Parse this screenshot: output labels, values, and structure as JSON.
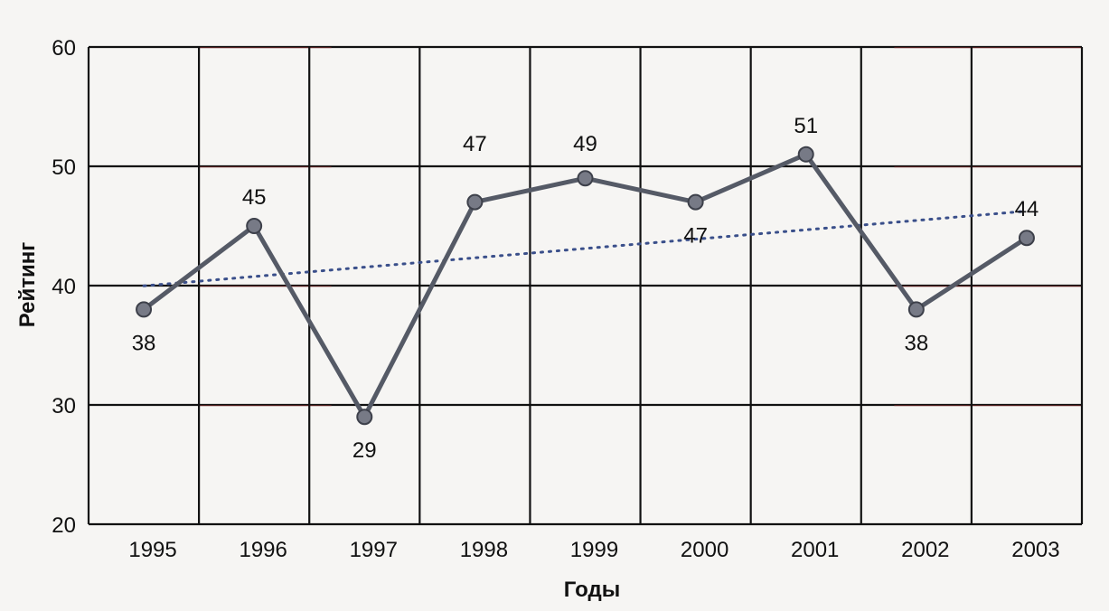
{
  "chart_data": {
    "type": "line",
    "categories": [
      "1995",
      "1996",
      "1997",
      "1998",
      "1999",
      "2000",
      "2001",
      "2002",
      "2003"
    ],
    "values": [
      38,
      45,
      29,
      47,
      49,
      47,
      51,
      38,
      44
    ],
    "data_labels": [
      "38",
      "45",
      "29",
      "47",
      "49",
      "47",
      "51",
      "38",
      "44"
    ],
    "y_ticks": [
      "20",
      "30",
      "40",
      "50",
      "60"
    ],
    "ylim": [
      20,
      60
    ],
    "xlabel": "Годы",
    "ylabel": "Рейтинг",
    "grid": true,
    "trendline": {
      "type": "linear",
      "style": "dotted"
    },
    "colors": {
      "line": "#555a66",
      "marker": "#777a86",
      "grid": "#111111",
      "grid_accent": "#9b2d2d",
      "trend": "#3a4f8a"
    }
  }
}
